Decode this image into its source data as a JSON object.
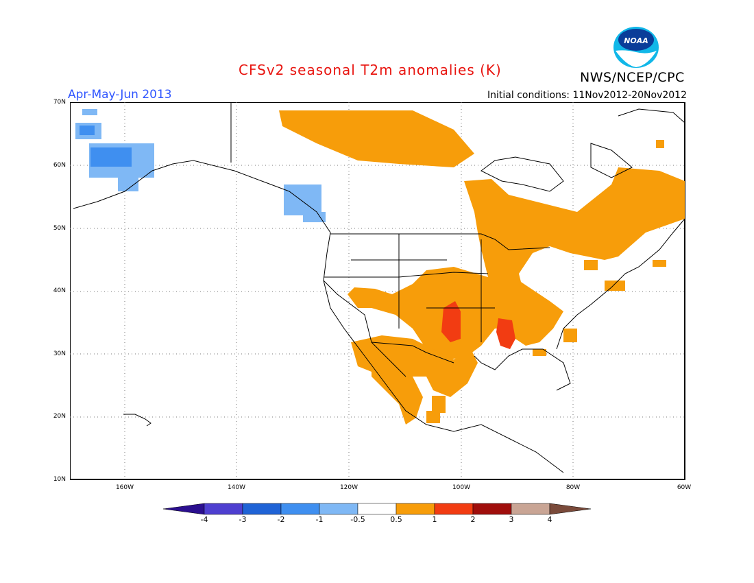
{
  "title": "CFSv2 seasonal T2m anomalies (K)",
  "agency": "NWS/NCEP/CPC",
  "logo_text": "NOAA",
  "period": "Apr-May-Jun 2013",
  "initial_conditions": "Initial conditions: 11Nov2012-20Nov2012",
  "axes": {
    "lat_labels": [
      "70N",
      "60N",
      "50N",
      "40N",
      "30N",
      "20N",
      "10N"
    ],
    "lon_labels": [
      "160W",
      "140W",
      "120W",
      "100W",
      "80W",
      "60W"
    ]
  },
  "colorbar": {
    "labels": [
      "-4",
      "-3",
      "-2",
      "-1",
      "-0.5",
      "0.5",
      "1",
      "2",
      "3",
      "4"
    ],
    "colors": [
      "#2b0f8f",
      "#4e3fd0",
      "#1f63d6",
      "#3f8ff0",
      "#7fb8f5",
      "#ffffff",
      "#f79d0a",
      "#f23c12",
      "#a00e0c",
      "#c9a595",
      "#7a4a3a"
    ]
  },
  "map_colors": {
    "warm_05_1": "#f79d0a",
    "warm_1_2": "#f23c12",
    "cool_05_1": "#7fb8f5",
    "cool_1_2": "#3f8ff0",
    "cool_2_3": "#1f63d6"
  }
}
